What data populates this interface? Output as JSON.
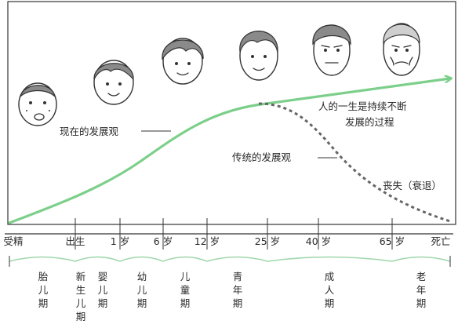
{
  "colors": {
    "modern_curve": "#7ccf8a",
    "traditional_curve": "#666666",
    "axis": "#333333",
    "stage_arc": "#9fd7ab"
  },
  "icons": [
    "fetus-face-icon",
    "infant-face-icon",
    "child-face-icon",
    "youth-face-icon",
    "adult-face-icon",
    "middle-aged-face-icon",
    "elderly-face-icon"
  ],
  "annotations": {
    "modern_view": "现在的发展观",
    "traditional_view": "传统的发展观",
    "lifelong_line1": "人的一生是持续不断",
    "lifelong_line2": "发展的过程",
    "decline": "丧失（衰退）"
  },
  "axis": {
    "ticks": [
      "受精",
      "出生",
      "1 岁",
      "6 岁",
      "12 岁",
      "25 岁",
      "40 岁",
      "65 岁",
      "死亡"
    ]
  },
  "stages": [
    "胎儿期",
    "新生儿期",
    "婴儿期",
    "幼儿期",
    "儿童期",
    "青年期",
    "成人期",
    "老年期"
  ]
}
